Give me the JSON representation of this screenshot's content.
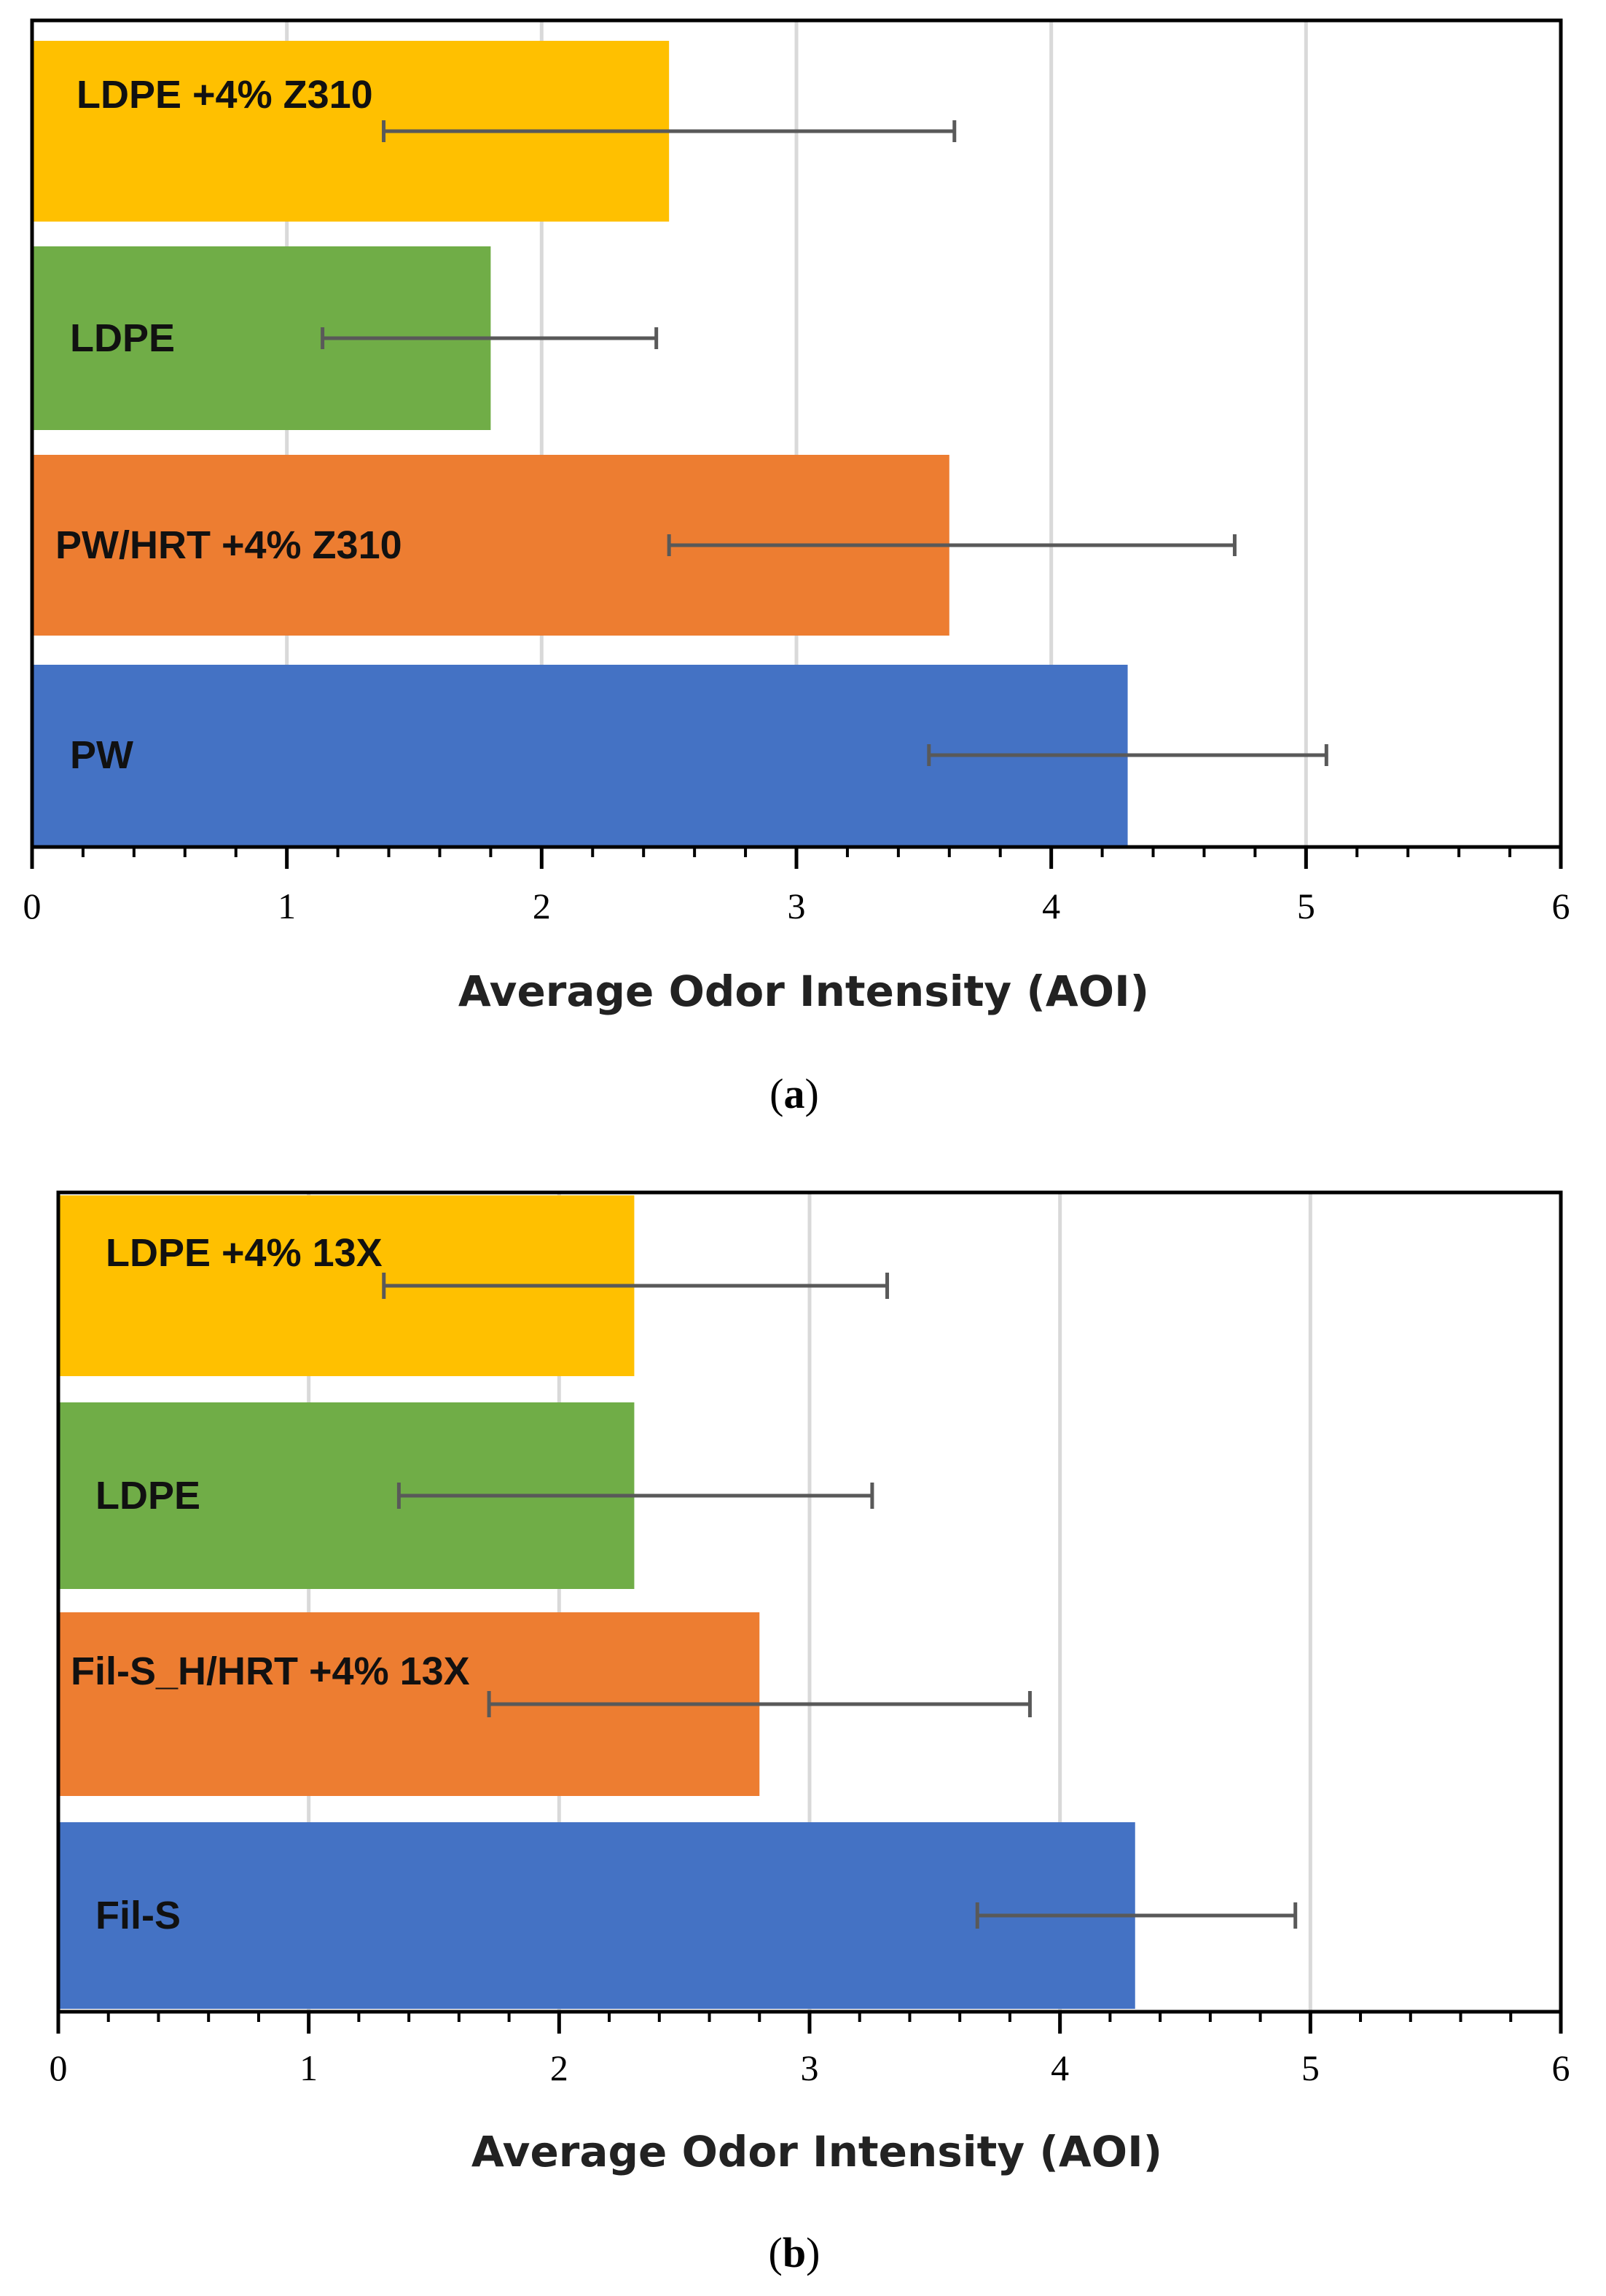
{
  "chart_data": [
    {
      "type": "bar",
      "orientation": "horizontal",
      "panel_label": "a",
      "xlabel": "Average Odor Intensity (AOI)",
      "xlim": [
        0,
        6
      ],
      "xticks": [
        "0",
        "1",
        "2",
        "3",
        "4",
        "5",
        "6"
      ],
      "grid": true,
      "categories": [
        "LDPE +4% Z310",
        "LDPE",
        "PW/HRT +4% Z310",
        "PW"
      ],
      "values": [
        2.5,
        1.8,
        3.6,
        4.3
      ],
      "error_low": [
        1.38,
        1.14,
        2.5,
        3.52
      ],
      "error_high": [
        3.62,
        2.45,
        4.72,
        5.08
      ],
      "colors": [
        "#FFC000",
        "#70AD47",
        "#ED7D31",
        "#4472C4"
      ]
    },
    {
      "type": "bar",
      "orientation": "horizontal",
      "panel_label": "b",
      "xlabel": "Average Odor Intensity (AOI)",
      "xlim": [
        0,
        6
      ],
      "xticks": [
        "0",
        "1",
        "2",
        "3",
        "4",
        "5",
        "6"
      ],
      "grid": true,
      "categories": [
        "LDPE +4% 13X",
        "LDPE",
        "Fil-S_H/HRT +4% 13X",
        "Fil-S"
      ],
      "values": [
        2.3,
        2.3,
        2.8,
        4.3
      ],
      "error_low": [
        1.3,
        1.36,
        1.72,
        3.67
      ],
      "error_high": [
        3.31,
        3.25,
        3.88,
        4.94
      ],
      "colors": [
        "#FFC000",
        "#70AD47",
        "#ED7D31",
        "#4472C4"
      ]
    }
  ]
}
